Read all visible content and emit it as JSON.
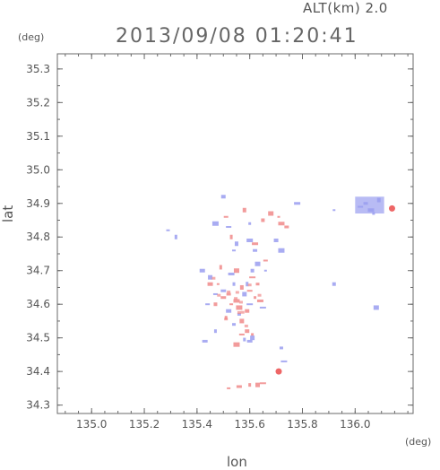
{
  "header": {
    "altitude": "ALT(km) 2.0",
    "timestamp": "2013/09/08 01:20:41"
  },
  "colors": {
    "axis": "#6a6a6a",
    "positive": "#f08a8a",
    "negative": "#9a9ef0",
    "hotspot": "#ee6666"
  },
  "chart_data": {
    "type": "scatter",
    "xlabel": "lon",
    "ylabel": "lat",
    "xunit": "(deg)",
    "yunit": "(deg)",
    "xlim": [
      134.87,
      136.22
    ],
    "ylim": [
      34.275,
      35.345
    ],
    "xticks": [
      "135.0",
      "135.2",
      "135.4",
      "135.6",
      "135.8",
      "136.0"
    ],
    "yticks": [
      "34.3",
      "34.4",
      "34.5",
      "34.6",
      "34.7",
      "34.8",
      "34.9",
      "35.0",
      "35.1",
      "35.2",
      "35.3"
    ],
    "grid": false,
    "series": [
      {
        "values": [
          [
            135.48,
            34.66
          ],
          [
            135.52,
            34.63
          ],
          [
            135.55,
            34.61
          ],
          [
            135.57,
            34.65
          ],
          [
            135.6,
            34.64
          ],
          [
            135.62,
            34.62
          ],
          [
            135.59,
            34.58
          ],
          [
            135.56,
            34.59
          ],
          [
            135.53,
            34.6
          ],
          [
            135.5,
            34.62
          ],
          [
            135.51,
            34.56
          ],
          [
            135.57,
            34.55
          ],
          [
            135.61,
            34.68
          ],
          [
            135.63,
            34.66
          ],
          [
            135.45,
            34.66
          ],
          [
            135.53,
            34.8
          ],
          [
            135.51,
            34.86
          ],
          [
            135.62,
            34.78
          ],
          [
            135.65,
            34.85
          ],
          [
            135.68,
            34.87
          ],
          [
            135.71,
            34.86
          ],
          [
            135.74,
            34.83
          ],
          [
            135.72,
            34.84
          ],
          [
            135.58,
            34.88
          ],
          [
            135.57,
            34.51
          ],
          [
            135.61,
            34.51
          ],
          [
            135.59,
            34.52
          ],
          [
            135.55,
            34.48
          ],
          [
            135.52,
            34.35
          ],
          [
            135.56,
            34.355
          ],
          [
            135.6,
            34.36
          ],
          [
            135.63,
            34.36
          ],
          [
            135.65,
            34.365
          ],
          [
            135.71,
            34.4
          ],
          [
            136.14,
            34.885
          ],
          [
            135.49,
            34.71
          ],
          [
            135.66,
            34.73
          ],
          [
            135.64,
            34.61
          ],
          [
            135.47,
            34.6
          ],
          [
            135.55,
            34.7
          ]
        ]
      },
      {
        "values": [
          [
            135.5,
            34.64
          ],
          [
            135.54,
            34.66
          ],
          [
            135.58,
            34.63
          ],
          [
            135.6,
            34.6
          ],
          [
            135.56,
            34.57
          ],
          [
            135.52,
            34.58
          ],
          [
            135.59,
            34.66
          ],
          [
            135.47,
            34.63
          ],
          [
            135.53,
            34.69
          ],
          [
            135.61,
            34.7
          ],
          [
            135.63,
            34.72
          ],
          [
            135.66,
            34.7
          ],
          [
            135.62,
            34.76
          ],
          [
            135.6,
            34.79
          ],
          [
            135.55,
            34.78
          ],
          [
            135.52,
            34.83
          ],
          [
            135.6,
            34.84
          ],
          [
            135.7,
            34.79
          ],
          [
            135.72,
            34.76
          ],
          [
            135.54,
            34.76
          ],
          [
            135.6,
            34.49
          ],
          [
            135.58,
            34.495
          ],
          [
            135.61,
            34.5
          ],
          [
            135.73,
            34.43
          ],
          [
            135.72,
            34.47
          ],
          [
            135.42,
            34.7
          ],
          [
            135.32,
            34.8
          ],
          [
            135.44,
            34.6
          ],
          [
            135.78,
            34.9
          ],
          [
            135.92,
            34.66
          ],
          [
            136.08,
            34.59
          ],
          [
            135.92,
            34.88
          ],
          [
            136.04,
            34.9
          ],
          [
            136.06,
            34.88
          ],
          [
            136.09,
            34.91
          ],
          [
            136.02,
            34.89
          ],
          [
            136.07,
            34.87
          ],
          [
            135.5,
            34.92
          ],
          [
            135.47,
            34.84
          ],
          [
            135.29,
            34.82
          ],
          [
            135.43,
            34.49
          ],
          [
            135.47,
            34.52
          ],
          [
            135.45,
            34.68
          ],
          [
            135.65,
            34.59
          ],
          [
            135.54,
            34.54
          ]
        ]
      }
    ]
  }
}
